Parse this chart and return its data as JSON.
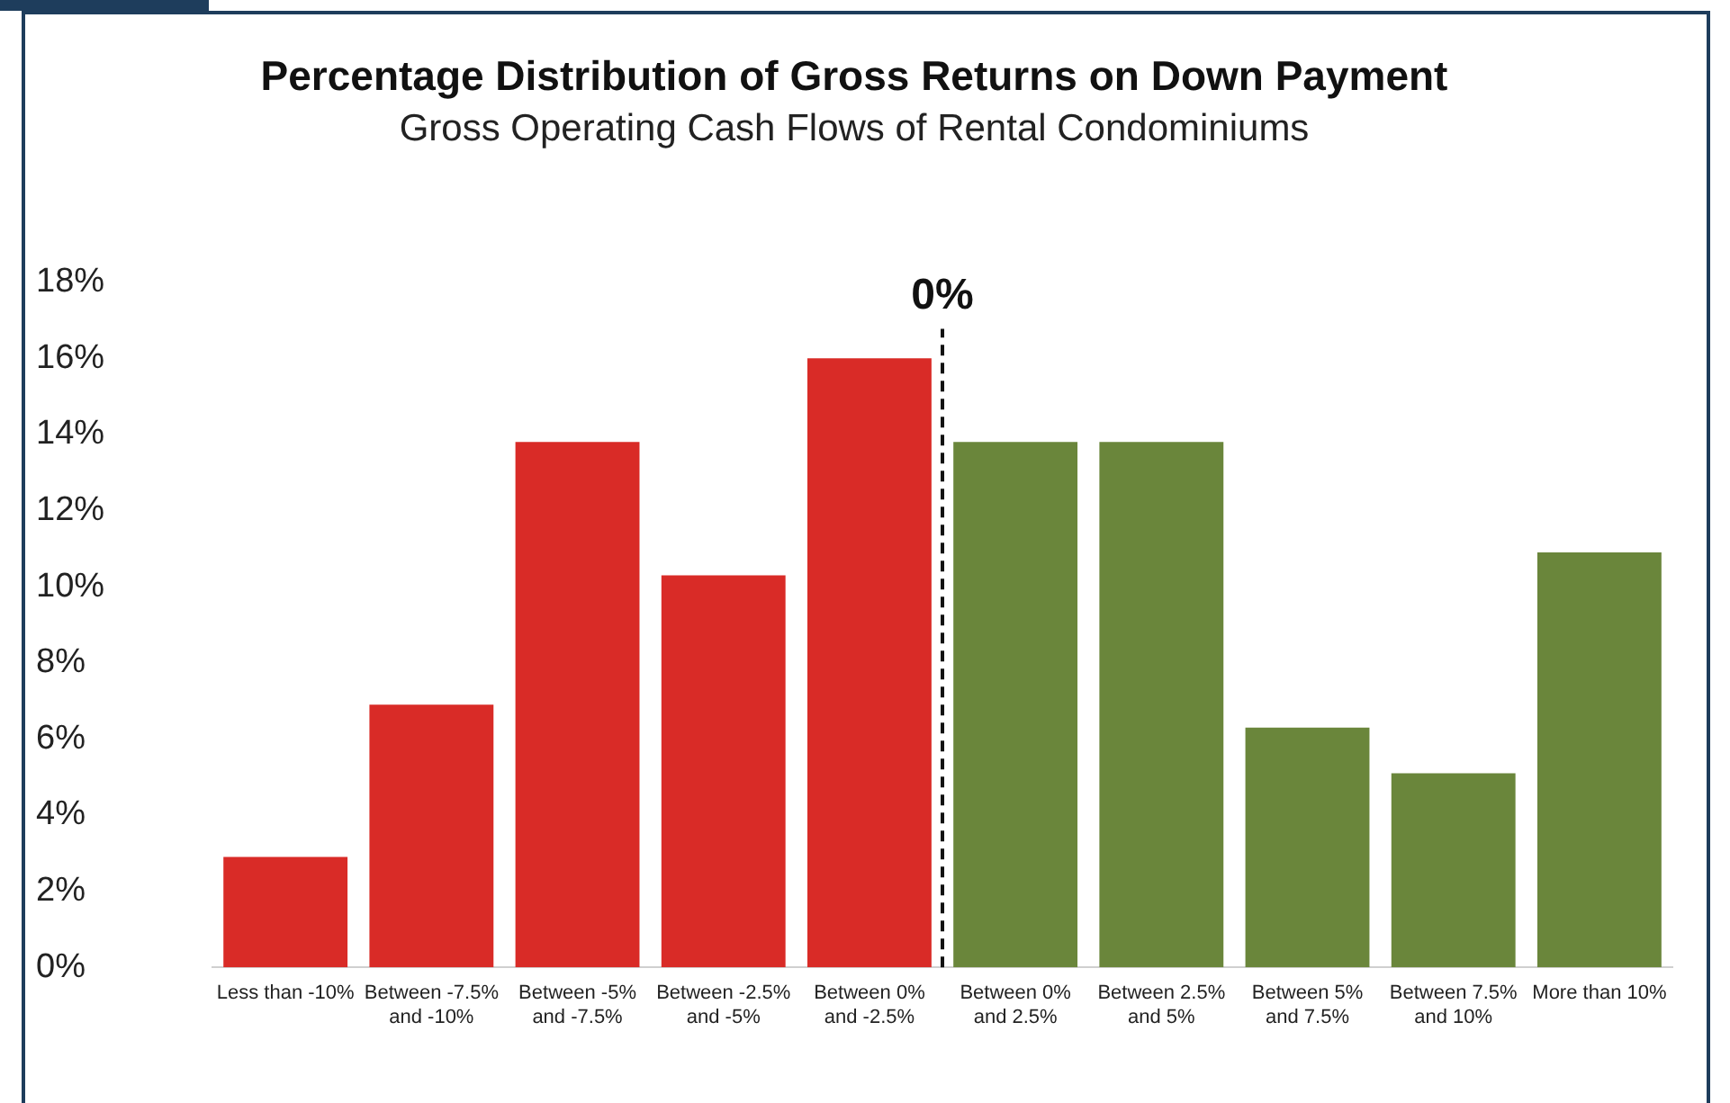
{
  "chart_data": {
    "type": "bar",
    "title": "Percentage Distribution of Gross Returns on Down Payment",
    "subtitle": "Gross Operating Cash Flows of Rental Condominiums",
    "categories": [
      "Less than -10%",
      "Between -7.5% and -10%",
      "Between -5% and -7.5%",
      "Between -2.5% and -5%",
      "Between 0% and -2.5%",
      "Between 0% and 2.5%",
      "Between 2.5% and 5%",
      "Between 5% and 7.5%",
      "Between 7.5% and 10%",
      "More than 10%"
    ],
    "values": [
      2.9,
      6.9,
      13.8,
      10.3,
      16.0,
      13.8,
      13.8,
      6.3,
      5.1,
      10.9
    ],
    "colors": [
      "#d92b27",
      "#d92b27",
      "#d92b27",
      "#d92b27",
      "#d92b27",
      "#6a863b",
      "#6a863b",
      "#6a863b",
      "#6a863b",
      "#6a863b"
    ],
    "ylim": [
      0,
      18
    ],
    "yticks": [
      {
        "value": 0,
        "label": "0%"
      },
      {
        "value": 2,
        "label": "2%"
      },
      {
        "value": 4,
        "label": "4%"
      },
      {
        "value": 6,
        "label": "6%"
      },
      {
        "value": 8,
        "label": "8%"
      },
      {
        "value": 10,
        "label": "10%"
      },
      {
        "value": 12,
        "label": "12%"
      },
      {
        "value": 14,
        "label": "14%"
      },
      {
        "value": 16,
        "label": "16%"
      },
      {
        "value": 18,
        "label": "18%"
      }
    ],
    "annotations": [
      "0%"
    ],
    "grid": false,
    "legend": false
  }
}
